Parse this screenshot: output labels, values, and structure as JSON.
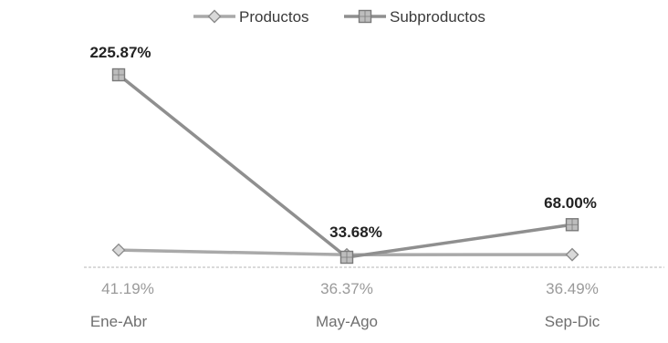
{
  "chart_data": {
    "type": "line",
    "categories": [
      "Ene-Abr",
      "May-Ago",
      "Sep-Dic"
    ],
    "series": [
      {
        "name": "Productos",
        "marker": "diamond",
        "values": [
          41.19,
          36.37,
          36.49
        ],
        "labels": [
          "41.19%",
          "36.37%",
          "36.49%"
        ],
        "color": "#a9a9a9",
        "marker_fill": "#d9d9d9",
        "marker_stroke": "#8c8c8c",
        "label_color": "#9a9a9a"
      },
      {
        "name": "Subproductos",
        "marker": "square",
        "values": [
          225.87,
          33.68,
          68.0
        ],
        "labels": [
          "225.87%",
          "33.68%",
          "68.00%"
        ],
        "color": "#8f8f8f",
        "marker_fill": "#bdbdbd",
        "marker_stroke": "#7a7a7a",
        "label_color": "#222222"
      }
    ],
    "legend_position": "top-center",
    "baseline_style": "dashed",
    "grid": false,
    "ylim": [
      0,
      240
    ]
  },
  "colors": {
    "axis_label": "#6f6f6f",
    "baseline": "#b5b5b5",
    "legend_text": "#3a3a3a"
  }
}
